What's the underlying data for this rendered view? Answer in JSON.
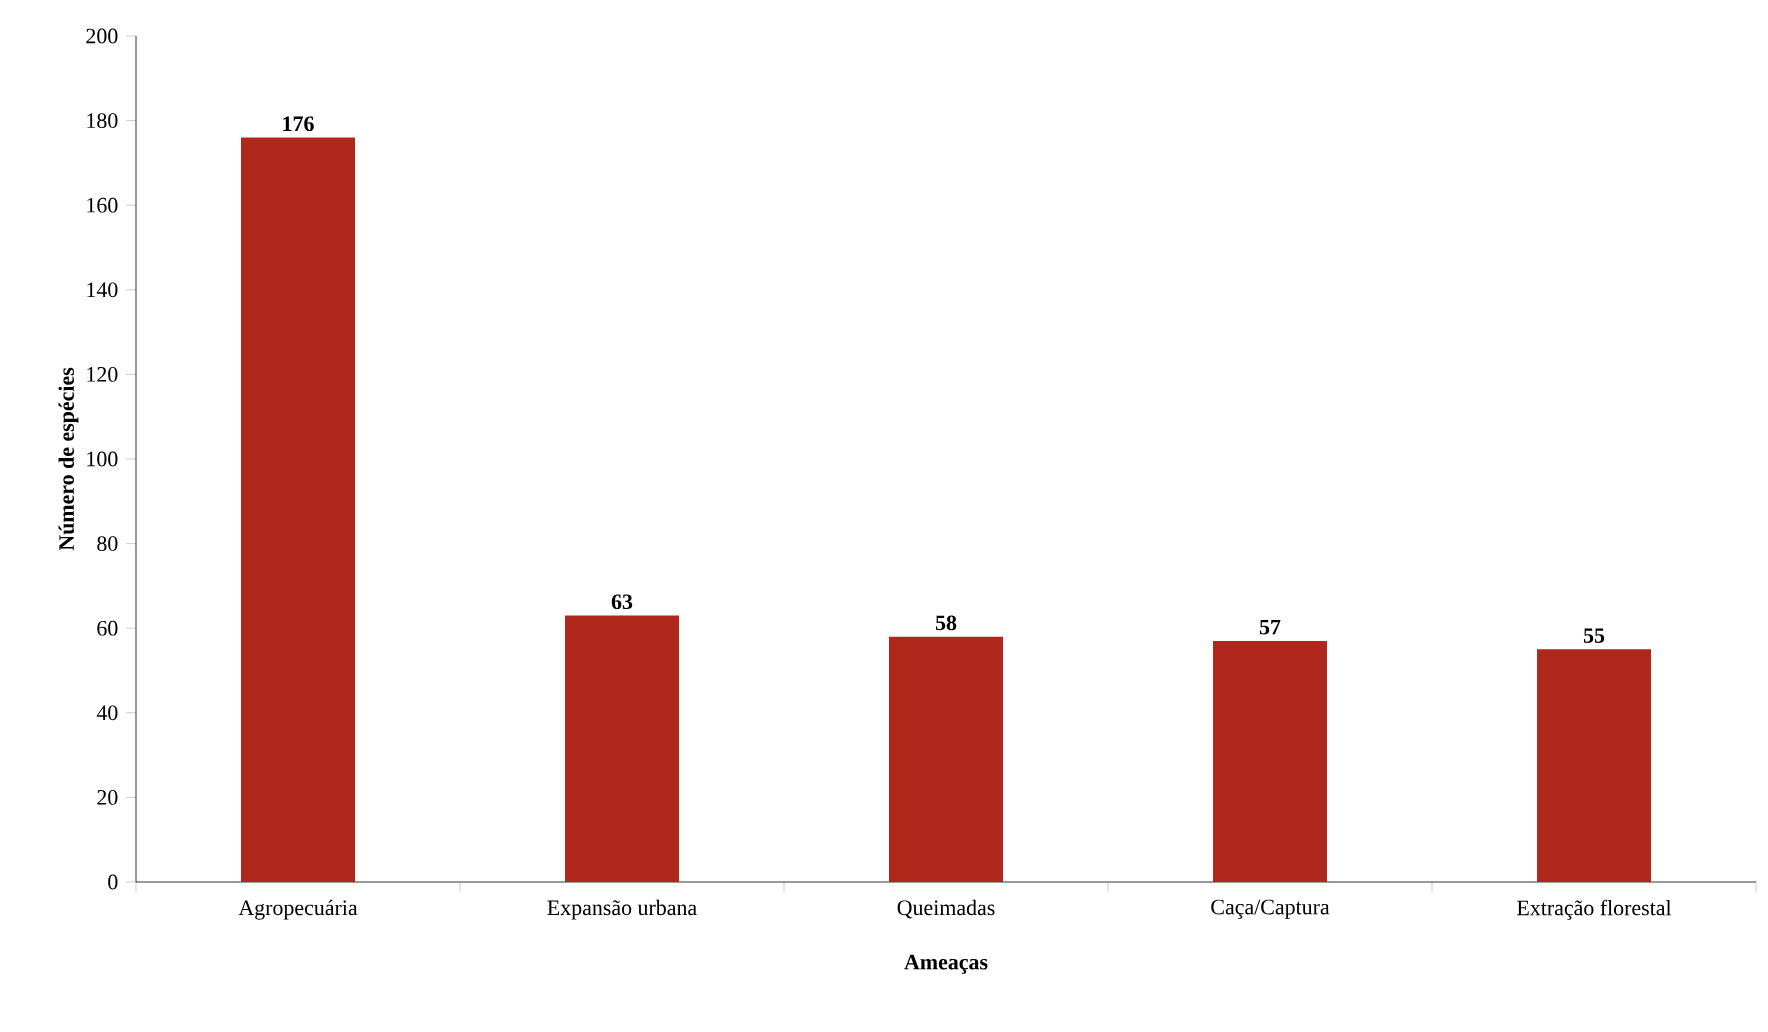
{
  "chart_data": {
    "type": "bar",
    "xlabel": "Ameaças",
    "ylabel": "Número de espécies",
    "categories": [
      "Agropecuária",
      "Expansão urbana",
      "Queimadas",
      "Caça/Captura",
      "Extração florestal"
    ],
    "values": [
      176,
      63,
      58,
      57,
      55
    ],
    "color": "#b0281c",
    "ylim": [
      0,
      200
    ],
    "yticks": [
      0,
      20,
      40,
      60,
      80,
      100,
      120,
      140,
      160,
      180,
      200
    ],
    "data_labels": true
  }
}
